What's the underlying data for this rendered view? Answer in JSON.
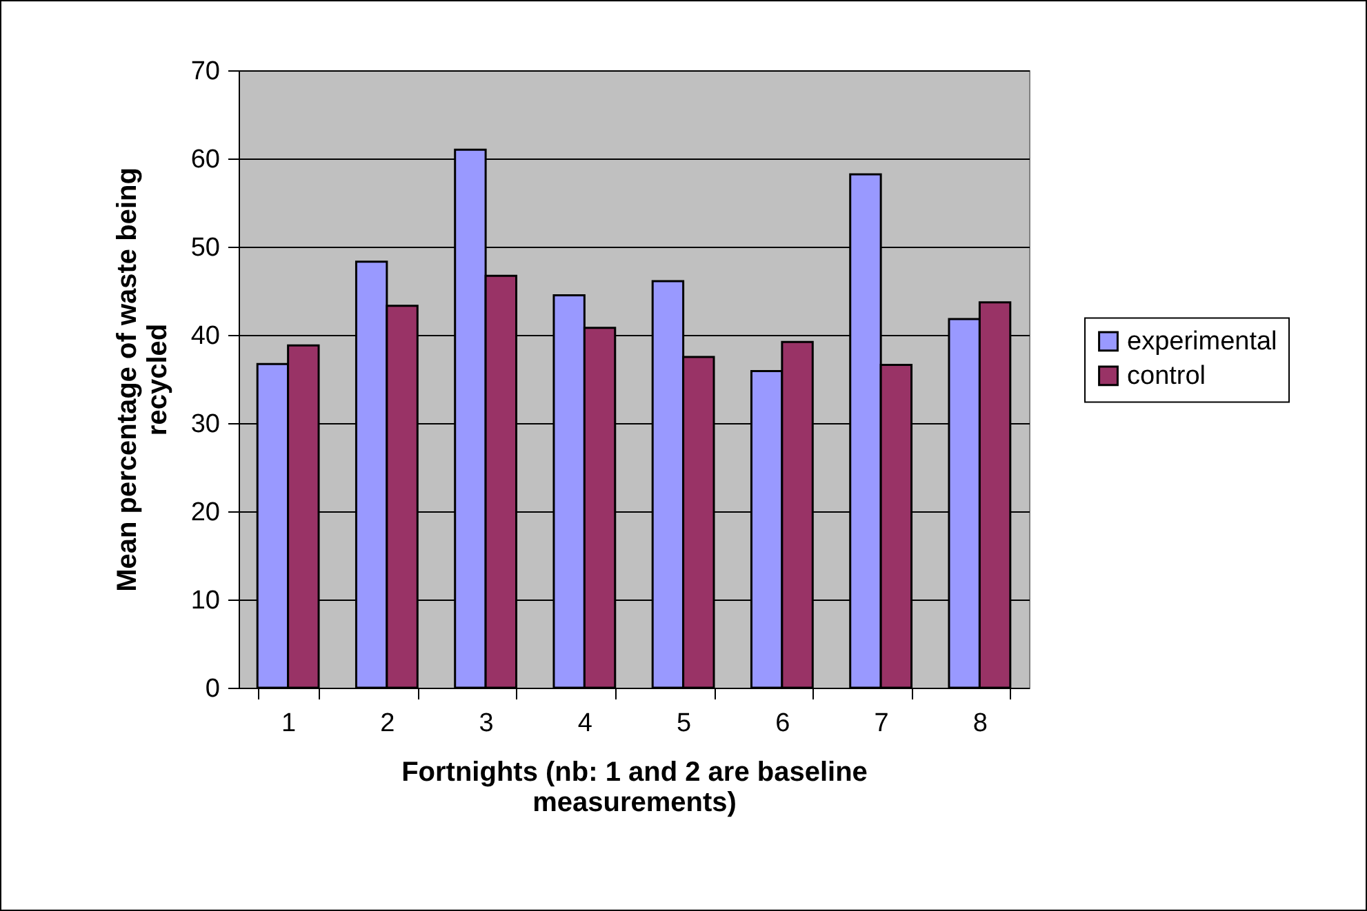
{
  "chart_data": {
    "type": "bar",
    "xlabel": "Fortnights (nb: 1 and 2 are baseline measurements)",
    "ylabel": "Mean percentage of waste being recycled",
    "categories": [
      "1",
      "2",
      "3",
      "4",
      "5",
      "6",
      "7",
      "8"
    ],
    "series": [
      {
        "name": "experimental",
        "color": "#9999ff",
        "values": [
          36.7,
          48.3,
          61.0,
          44.5,
          46.1,
          35.9,
          58.2,
          41.8
        ]
      },
      {
        "name": "control",
        "color": "#993366",
        "values": [
          38.8,
          43.3,
          46.7,
          40.8,
          37.5,
          39.2,
          36.6,
          43.7
        ]
      }
    ],
    "ylim": [
      0,
      70
    ],
    "yticks": [
      0,
      10,
      20,
      30,
      40,
      50,
      60,
      70
    ],
    "grid": "y",
    "legend": "right"
  }
}
